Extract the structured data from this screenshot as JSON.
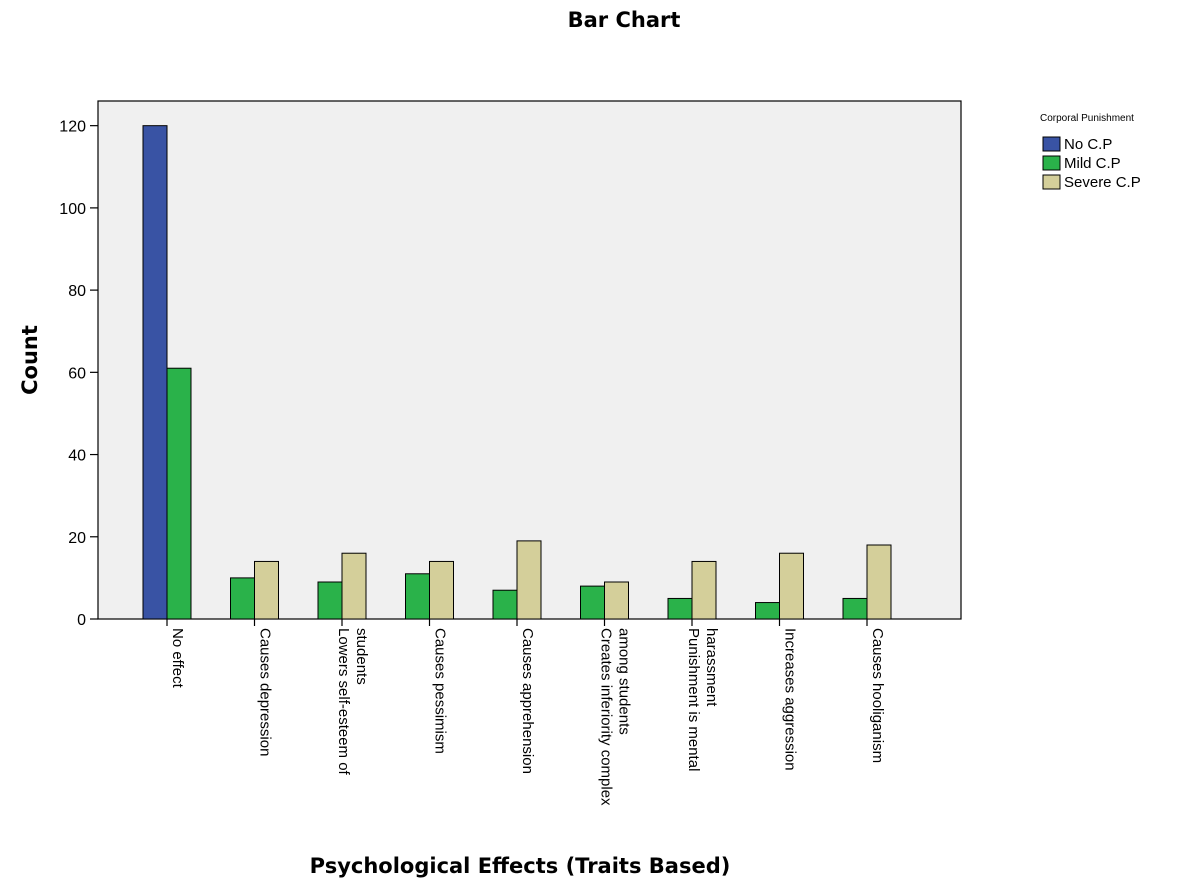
{
  "chart_data": {
    "type": "bar",
    "title": "Bar Chart",
    "xlabel": "Psychological Effects (Traits Based)",
    "ylabel": "Count",
    "ylim": [
      0,
      126
    ],
    "yticks": [
      0,
      20,
      40,
      60,
      80,
      100,
      120
    ],
    "grid": false,
    "legend_title": "Corporal Punishment",
    "legend_position": "top-right",
    "categories": [
      [
        "No effect"
      ],
      [
        "Causes depression"
      ],
      [
        "Lowers self-esteem of",
        "students"
      ],
      [
        "Causes pessimism"
      ],
      [
        "Causes apprehension"
      ],
      [
        "Creates inferiority complex",
        "among students"
      ],
      [
        "Punishment is mental",
        "harassment"
      ],
      [
        "Increases aggression"
      ],
      [
        "Causes hooliganism"
      ]
    ],
    "series": [
      {
        "name": "No C.P",
        "color": "#3953a4",
        "values": [
          120,
          0,
          0,
          0,
          0,
          0,
          0,
          0,
          0
        ]
      },
      {
        "name": "Mild C.P",
        "color": "#2ab24a",
        "values": [
          61,
          10,
          9,
          11,
          7,
          8,
          5,
          4,
          5
        ]
      },
      {
        "name": "Severe C.P",
        "color": "#d4cf9a",
        "values": [
          0,
          14,
          16,
          14,
          19,
          9,
          14,
          16,
          18
        ]
      }
    ],
    "plot_background": "#f0f0f0"
  }
}
